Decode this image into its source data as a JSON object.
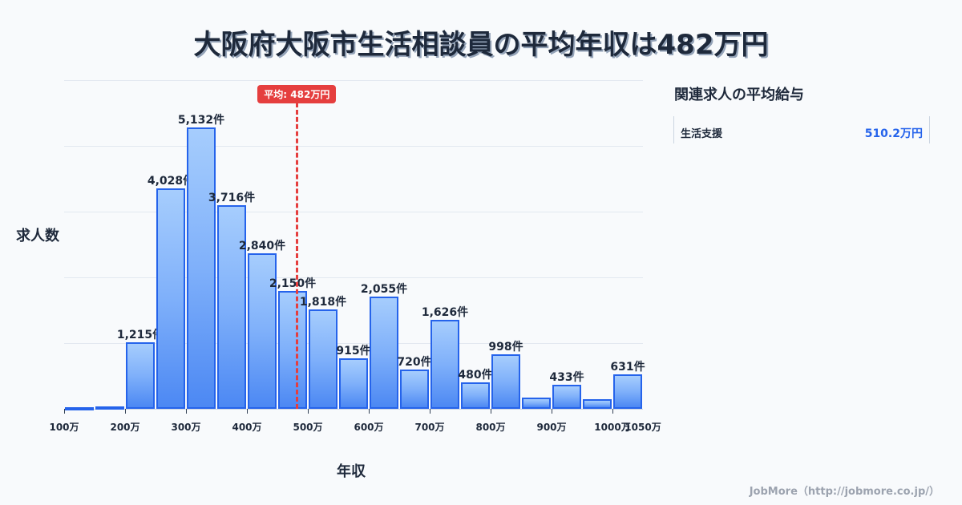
{
  "title": "大阪府大阪市生活相談員の平均年収は482万円",
  "chart_data": {
    "type": "bar",
    "title": "大阪府大阪市生活相談員の平均年収は482万円",
    "xlabel": "年収",
    "ylabel": "求人数",
    "bin_edges": [
      100,
      150,
      200,
      250,
      300,
      350,
      400,
      450,
      500,
      550,
      600,
      650,
      700,
      750,
      800,
      850,
      900,
      950,
      1000,
      1050
    ],
    "categories": [
      "100-150万",
      "150-200万",
      "200-250万",
      "250-300万",
      "300-350万",
      "350-400万",
      "400-450万",
      "450-500万",
      "500-550万",
      "550-600万",
      "600-650万",
      "650-700万",
      "700-750万",
      "750-800万",
      "800-850万",
      "850-900万",
      "900-950万",
      "950-1000万",
      "1000-1050万"
    ],
    "values": [
      25,
      45,
      1215,
      4028,
      5132,
      3716,
      2840,
      2150,
      1818,
      915,
      2055,
      720,
      1626,
      480,
      998,
      205,
      433,
      180,
      631
    ],
    "value_labels": [
      "",
      "",
      "1,215件",
      "4,028件",
      "5,132件",
      "3,716件",
      "2,840件",
      "2,150件",
      "1,818件",
      "915件",
      "2,055件",
      "720件",
      "1,626件",
      "480件",
      "998件",
      "",
      "433件",
      "",
      "631件"
    ],
    "x_ticks": [
      "100万",
      "200万",
      "300万",
      "400万",
      "500万",
      "600万",
      "700万",
      "800万",
      "900万",
      "1000万",
      "1050万"
    ],
    "x_tick_values": [
      100,
      200,
      300,
      400,
      500,
      600,
      700,
      800,
      900,
      1000,
      1050
    ],
    "xlim": [
      100,
      1050
    ],
    "ylim": [
      0,
      6000
    ],
    "grid": true,
    "annotations": [
      {
        "type": "vline",
        "x": 482,
        "label": "平均: 482万円",
        "color": "#e53e3e"
      }
    ],
    "bar_color": "#4c88f3",
    "bar_edge_color": "#2563eb"
  },
  "average_badge": "平均: 482万円",
  "sidebar": {
    "title": "関連求人の平均給与",
    "rows": [
      {
        "label": "生活支援",
        "value": "510.2万円"
      }
    ]
  },
  "footer": "JobMore（http://jobmore.co.jp/）"
}
